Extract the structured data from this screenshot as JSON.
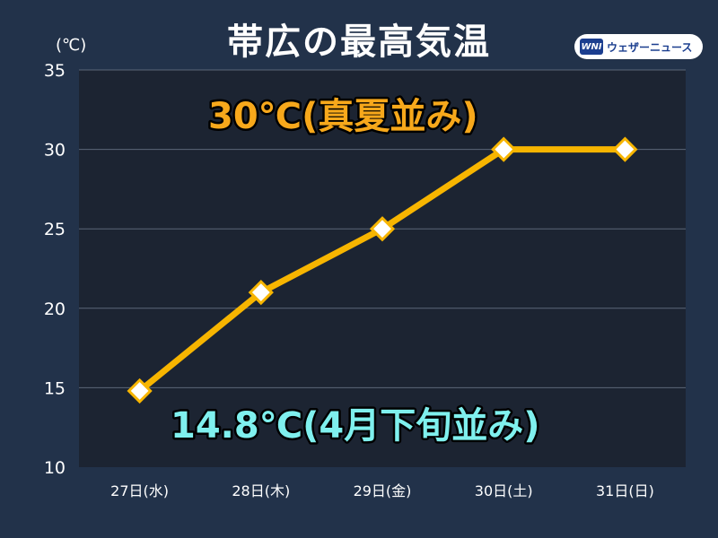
{
  "header": {
    "title": "帯広の最高気温",
    "logo_mark": "WNI",
    "logo_text": "ウェザーニュース"
  },
  "chart_data": {
    "type": "line",
    "title": "帯広の最高気温",
    "ylabel": "(℃)",
    "xlabel": "",
    "categories": [
      "27日(水)",
      "28日(木)",
      "29日(金)",
      "30日(土)",
      "31日(日)"
    ],
    "series": [
      {
        "values": [
          14.8,
          21,
          25,
          30,
          30
        ]
      }
    ],
    "ylim": [
      10,
      35
    ],
    "yticks": [
      10,
      15,
      20,
      25,
      30,
      35
    ],
    "ytick_labels": [
      "10",
      "15",
      "20",
      "25",
      "30",
      "35"
    ],
    "grid": true,
    "annotations": [
      {
        "text": "30℃(真夏並み)",
        "color": "#f7a81b"
      },
      {
        "text": "14.8℃(4月下旬並み)",
        "color": "#7ff0ee"
      }
    ],
    "colors": {
      "line": "#f7b500",
      "marker_fill": "#ffffff",
      "plot_bg": "#1c2432",
      "grid": "#5b6778"
    }
  }
}
